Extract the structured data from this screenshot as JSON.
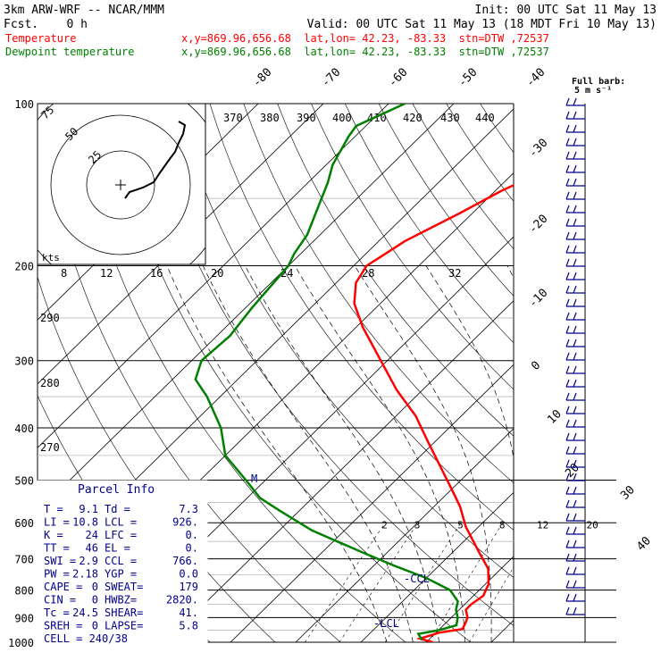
{
  "header": {
    "model": "3km ARW-WRF -- NCAR/MMM",
    "init": "Init: 00 UTC Sat 11 May 13",
    "fcst": "Fcst.    0 h",
    "valid": "Valid: 00 UTC Sat 11 May 13 (18 MDT Fri 10 May 13)"
  },
  "legend": [
    {
      "name": "Temperature",
      "info": "x,y=869.96,656.68  lat,lon= 42.23, -83.33  stn=DTW ,72537",
      "color": "#ff0000"
    },
    {
      "name": "Dewpoint temperature",
      "info": "x,y=869.96,656.68  lat,lon= 42.23, -83.33  stn=DTW ,72537",
      "color": "#008000"
    }
  ],
  "barb_legend": {
    "line1": "Full barb:",
    "line2": "5 m s⁻¹"
  },
  "hodograph": {
    "kts_label": "kts",
    "ring_labels": [
      "25",
      "50",
      "75"
    ],
    "speed_labels": [
      "8",
      "12",
      "16",
      "20",
      "24",
      "28",
      "32"
    ],
    "theta_labels": [
      "370",
      "380",
      "390",
      "400",
      "410",
      "420",
      "430",
      "440"
    ]
  },
  "side_theta_labels": [
    "290",
    "280",
    "270"
  ],
  "mixing_ratio_labels": [
    "2",
    "3",
    "5",
    "8",
    "12",
    "20"
  ],
  "markers": {
    "ccl": "-CCL",
    "lcl": "-LCL",
    "m": "M"
  },
  "parcel": {
    "title": "Parcel Info",
    "rows": [
      [
        "T   =",
        "9.1",
        "Td  =",
        "7.3"
      ],
      [
        "LI  =",
        "10.8",
        "LCL =",
        "926."
      ],
      [
        "K   =",
        "24",
        "LFC =",
        "0."
      ],
      [
        "TT  =",
        "46",
        "EL  =",
        "0."
      ],
      [
        "SWI =",
        "2.9",
        "CCL =",
        "766."
      ],
      [
        "PW  =",
        "2.18",
        "YGP =",
        "0.0"
      ],
      [
        "CAPE =",
        "0",
        "SWEAT=",
        "179"
      ],
      [
        "CIN =",
        "0",
        "HWBZ=",
        "2820."
      ],
      [
        "Tc  =",
        "24.5",
        "SHEAR=",
        "41."
      ],
      [
        "SREH =",
        "0",
        "LAPSE=",
        "5.8"
      ],
      [
        "CELL = 240/38",
        "",
        "",
        ""
      ]
    ]
  },
  "chart_data": {
    "type": "line",
    "subtype": "skew-T log-P diagram",
    "y_axis": {
      "label": "pressure (hPa)",
      "scale": "log",
      "range": [
        1000,
        100
      ],
      "ticks": [
        100,
        200,
        300,
        400,
        500,
        600,
        700,
        800,
        900,
        1000
      ]
    },
    "isotherm_labels": [
      "-80",
      "-70",
      "-60",
      "-50",
      "-40",
      "-30",
      "-20",
      "-10",
      "0",
      "10",
      "20",
      "30",
      "40"
    ],
    "series": [
      {
        "name": "Temperature",
        "color": "#ff0000",
        "x_unit": "°C",
        "y_unit": "hPa",
        "points": [
          [
            11.0,
            1000
          ],
          [
            8.5,
            985
          ],
          [
            10.5,
            960
          ],
          [
            13.5,
            945
          ],
          [
            13.0,
            920
          ],
          [
            12.5,
            900
          ],
          [
            11.0,
            870
          ],
          [
            11.0,
            850
          ],
          [
            11.5,
            820
          ],
          [
            10.5,
            780
          ],
          [
            8.0,
            730
          ],
          [
            4.0,
            680
          ],
          [
            -2.0,
            610
          ],
          [
            -6.0,
            560
          ],
          [
            -10.0,
            520
          ],
          [
            -15.5,
            470
          ],
          [
            -21.0,
            425
          ],
          [
            -27.0,
            380
          ],
          [
            -34.0,
            340
          ],
          [
            -41.0,
            300
          ],
          [
            -49.0,
            260
          ],
          [
            -54.0,
            235
          ],
          [
            -57.0,
            215
          ],
          [
            -58.0,
            200
          ],
          [
            -57.0,
            190
          ],
          [
            -56.0,
            180
          ],
          [
            -52.0,
            160
          ],
          [
            -49.0,
            145
          ],
          [
            -44.5,
            130
          ],
          [
            -43.0,
            120
          ],
          [
            -41.5,
            110
          ],
          [
            -42.0,
            100
          ]
        ]
      },
      {
        "name": "Dewpoint temperature",
        "color": "#008000",
        "x_unit": "°C",
        "y_unit": "hPa",
        "points": [
          [
            9.0,
            990
          ],
          [
            7.5,
            965
          ],
          [
            10.0,
            950
          ],
          [
            12.0,
            930
          ],
          [
            11.0,
            900
          ],
          [
            9.5,
            870
          ],
          [
            8.5,
            840
          ],
          [
            5.5,
            800
          ],
          [
            0.0,
            760
          ],
          [
            -7.0,
            720
          ],
          [
            -14.0,
            680
          ],
          [
            -25.0,
            620
          ],
          [
            -33.0,
            570
          ],
          [
            -38.0,
            540
          ],
          [
            -43.0,
            500
          ],
          [
            -50.0,
            450
          ],
          [
            -55.0,
            400
          ],
          [
            -62.0,
            350
          ],
          [
            -66.5,
            325
          ],
          [
            -68.5,
            300
          ],
          [
            -68.0,
            270
          ],
          [
            -69.0,
            240
          ],
          [
            -70.0,
            200
          ],
          [
            -71.0,
            190
          ],
          [
            -72.0,
            175
          ],
          [
            -74.0,
            160
          ],
          [
            -77.0,
            140
          ],
          [
            -79.0,
            130
          ],
          [
            -81.0,
            115
          ],
          [
            -81.5,
            110
          ],
          [
            -77.5,
            100
          ]
        ]
      }
    ],
    "grid": true
  }
}
